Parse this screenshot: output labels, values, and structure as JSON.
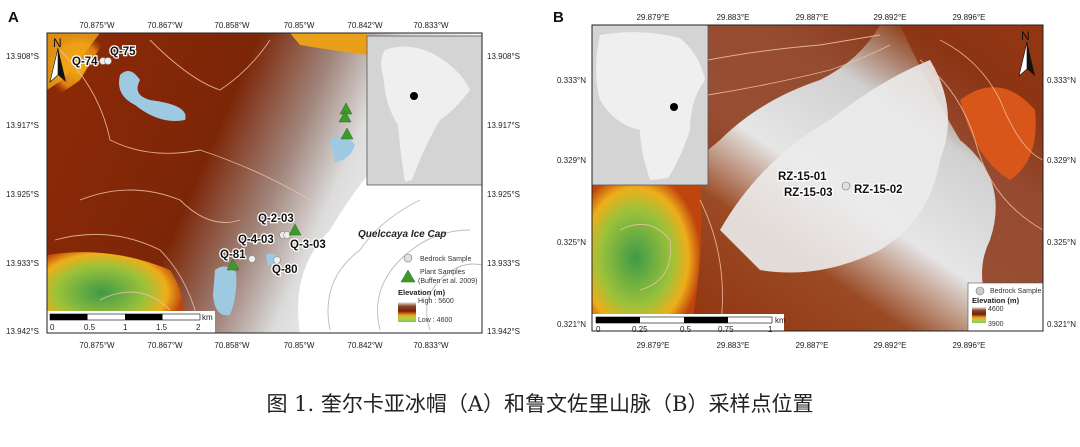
{
  "panel_a": {
    "label": "A",
    "lon_ticks": [
      "70.875°W",
      "70.867°W",
      "70.858°W",
      "70.85°W",
      "70.842°W",
      "70.833°W"
    ],
    "lat_ticks": [
      "13.908°S",
      "13.917°S",
      "13.925°S",
      "13.933°S",
      "13.942°S"
    ],
    "north_label": "N",
    "place_label": "Quelccaya Ice Cap",
    "samples": [
      "Q-74",
      "Q-75",
      "Q-2-03",
      "Q-4-03",
      "Q-3-03",
      "Q-81",
      "Q-80"
    ],
    "legend": {
      "bedrock": "Bedrock Sample",
      "plant": "Plant Samples",
      "plant_ref": "(Buffen et al. 2009)",
      "elev_title": "Elevation (m)",
      "high": "High : 5600",
      "low": "Low : 4600"
    },
    "scale": {
      "ticks": [
        "0",
        "0.5",
        "1",
        "1.5",
        "2"
      ],
      "unit": "km"
    },
    "inset": "South America"
  },
  "panel_b": {
    "label": "B",
    "lon_ticks": [
      "29.879°E",
      "29.883°E",
      "29.887°E",
      "29.892°E",
      "29.896°E"
    ],
    "lat_ticks": [
      "0.333°N",
      "0.329°N",
      "0.325°N",
      "0.321°N"
    ],
    "north_label": "N",
    "samples": [
      "RZ-15-01",
      "RZ-15-03",
      "RZ-15-02"
    ],
    "legend": {
      "bedrock": "Bedrock Sample",
      "elev_title": "Elevation (m)",
      "high": "4600",
      "low": "3900"
    },
    "scale": {
      "ticks": [
        "0",
        "0.25",
        "0.5",
        "0.75",
        "1"
      ],
      "unit": "km"
    },
    "inset": "Africa"
  },
  "caption": "图 1. 奎尔卡亚冰帽（A）和鲁文佐里山脉（B）采样点位置",
  "colors": {
    "ice": "#ffffff",
    "lake": "#9ecae1",
    "high": "#7a1c05",
    "low": "#5fae3c",
    "plant": "#3f9a2c",
    "bedrock": "#e0e0e0"
  }
}
